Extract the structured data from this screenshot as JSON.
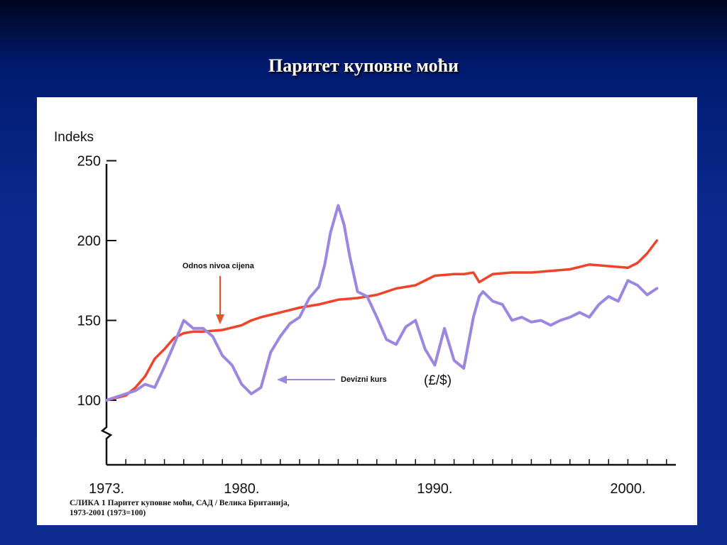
{
  "slide": {
    "title": "Паритет куповне моћи"
  },
  "caption": {
    "line1": "СЛИКА 1  Паритет куповне моћи, САД / Велика Британија,",
    "line2": "1973-2001 (1973=100)"
  },
  "colors": {
    "price_ratio": "#f0442a",
    "exchange_rate": "#9b86e0",
    "arrow": "#e8532e",
    "axis": "#111111"
  },
  "chart_data": {
    "type": "line",
    "ylabel": "Indeks",
    "ylim": [
      70,
      250
    ],
    "yticks": [
      100,
      150,
      200,
      250
    ],
    "xlim": [
      1973,
      2002
    ],
    "xticks": [
      1973,
      1980,
      1990,
      2000
    ],
    "xtick_labels": [
      "1973.",
      "1980.",
      "1990.",
      "2000."
    ],
    "grid": false,
    "annotations": [
      {
        "text": "Odnos nivoa cijena",
        "series": "Odnos nivoa cijena"
      },
      {
        "text": "Devizni kurs",
        "series": "Devizni kurs"
      },
      {
        "text": "(£/$)",
        "series": "Devizni kurs"
      }
    ],
    "series": [
      {
        "name": "Odnos nivoa cijena",
        "x": [
          1973,
          1974,
          1974.5,
          1975,
          1975.5,
          1976,
          1976.5,
          1977,
          1977.5,
          1978,
          1979,
          1980,
          1980.5,
          1981,
          1982,
          1983,
          1984,
          1985,
          1986,
          1987,
          1988,
          1989,
          1990,
          1991,
          1991.5,
          1992,
          1992.3,
          1993,
          1994,
          1995,
          1996,
          1997,
          1998,
          1999,
          2000,
          2000.5,
          2001,
          2001.5
        ],
        "values": [
          100,
          103,
          108,
          115,
          126,
          132,
          139,
          142,
          143,
          143,
          144,
          147,
          150,
          152,
          155,
          158,
          160,
          163,
          164,
          166,
          170,
          172,
          178,
          179,
          179,
          180,
          174,
          179,
          180,
          180,
          181,
          182,
          185,
          184,
          183,
          186,
          192,
          200
        ]
      },
      {
        "name": "Devizni kurs",
        "x": [
          1973,
          1973.5,
          1974,
          1974.5,
          1975,
          1975.5,
          1976,
          1976.5,
          1977,
          1977.5,
          1978,
          1978.5,
          1979,
          1979.5,
          1980,
          1980.5,
          1981,
          1981.5,
          1982,
          1982.5,
          1983,
          1983.5,
          1984,
          1984.3,
          1984.6,
          1985,
          1985.3,
          1985.6,
          1986,
          1986.5,
          1987,
          1987.5,
          1988,
          1988.5,
          1989,
          1989.5,
          1990,
          1990.5,
          1991,
          1991.5,
          1992,
          1992.3,
          1992.5,
          1993,
          1993.5,
          1994,
          1994.5,
          1995,
          1995.5,
          1996,
          1996.5,
          1997,
          1997.5,
          1998,
          1998.5,
          1999,
          1999.5,
          2000,
          2000.5,
          2001,
          2001.5
        ],
        "values": [
          100,
          102,
          104,
          106,
          110,
          108,
          121,
          135,
          150,
          145,
          145,
          140,
          128,
          122,
          110,
          104,
          108,
          130,
          140,
          148,
          152,
          164,
          171,
          185,
          205,
          222,
          210,
          190,
          168,
          165,
          152,
          138,
          135,
          146,
          150,
          132,
          122,
          145,
          125,
          120,
          152,
          165,
          168,
          162,
          160,
          150,
          152,
          149,
          150,
          147,
          150,
          152,
          155,
          152,
          160,
          165,
          162,
          175,
          172,
          166,
          170
        ]
      }
    ]
  }
}
